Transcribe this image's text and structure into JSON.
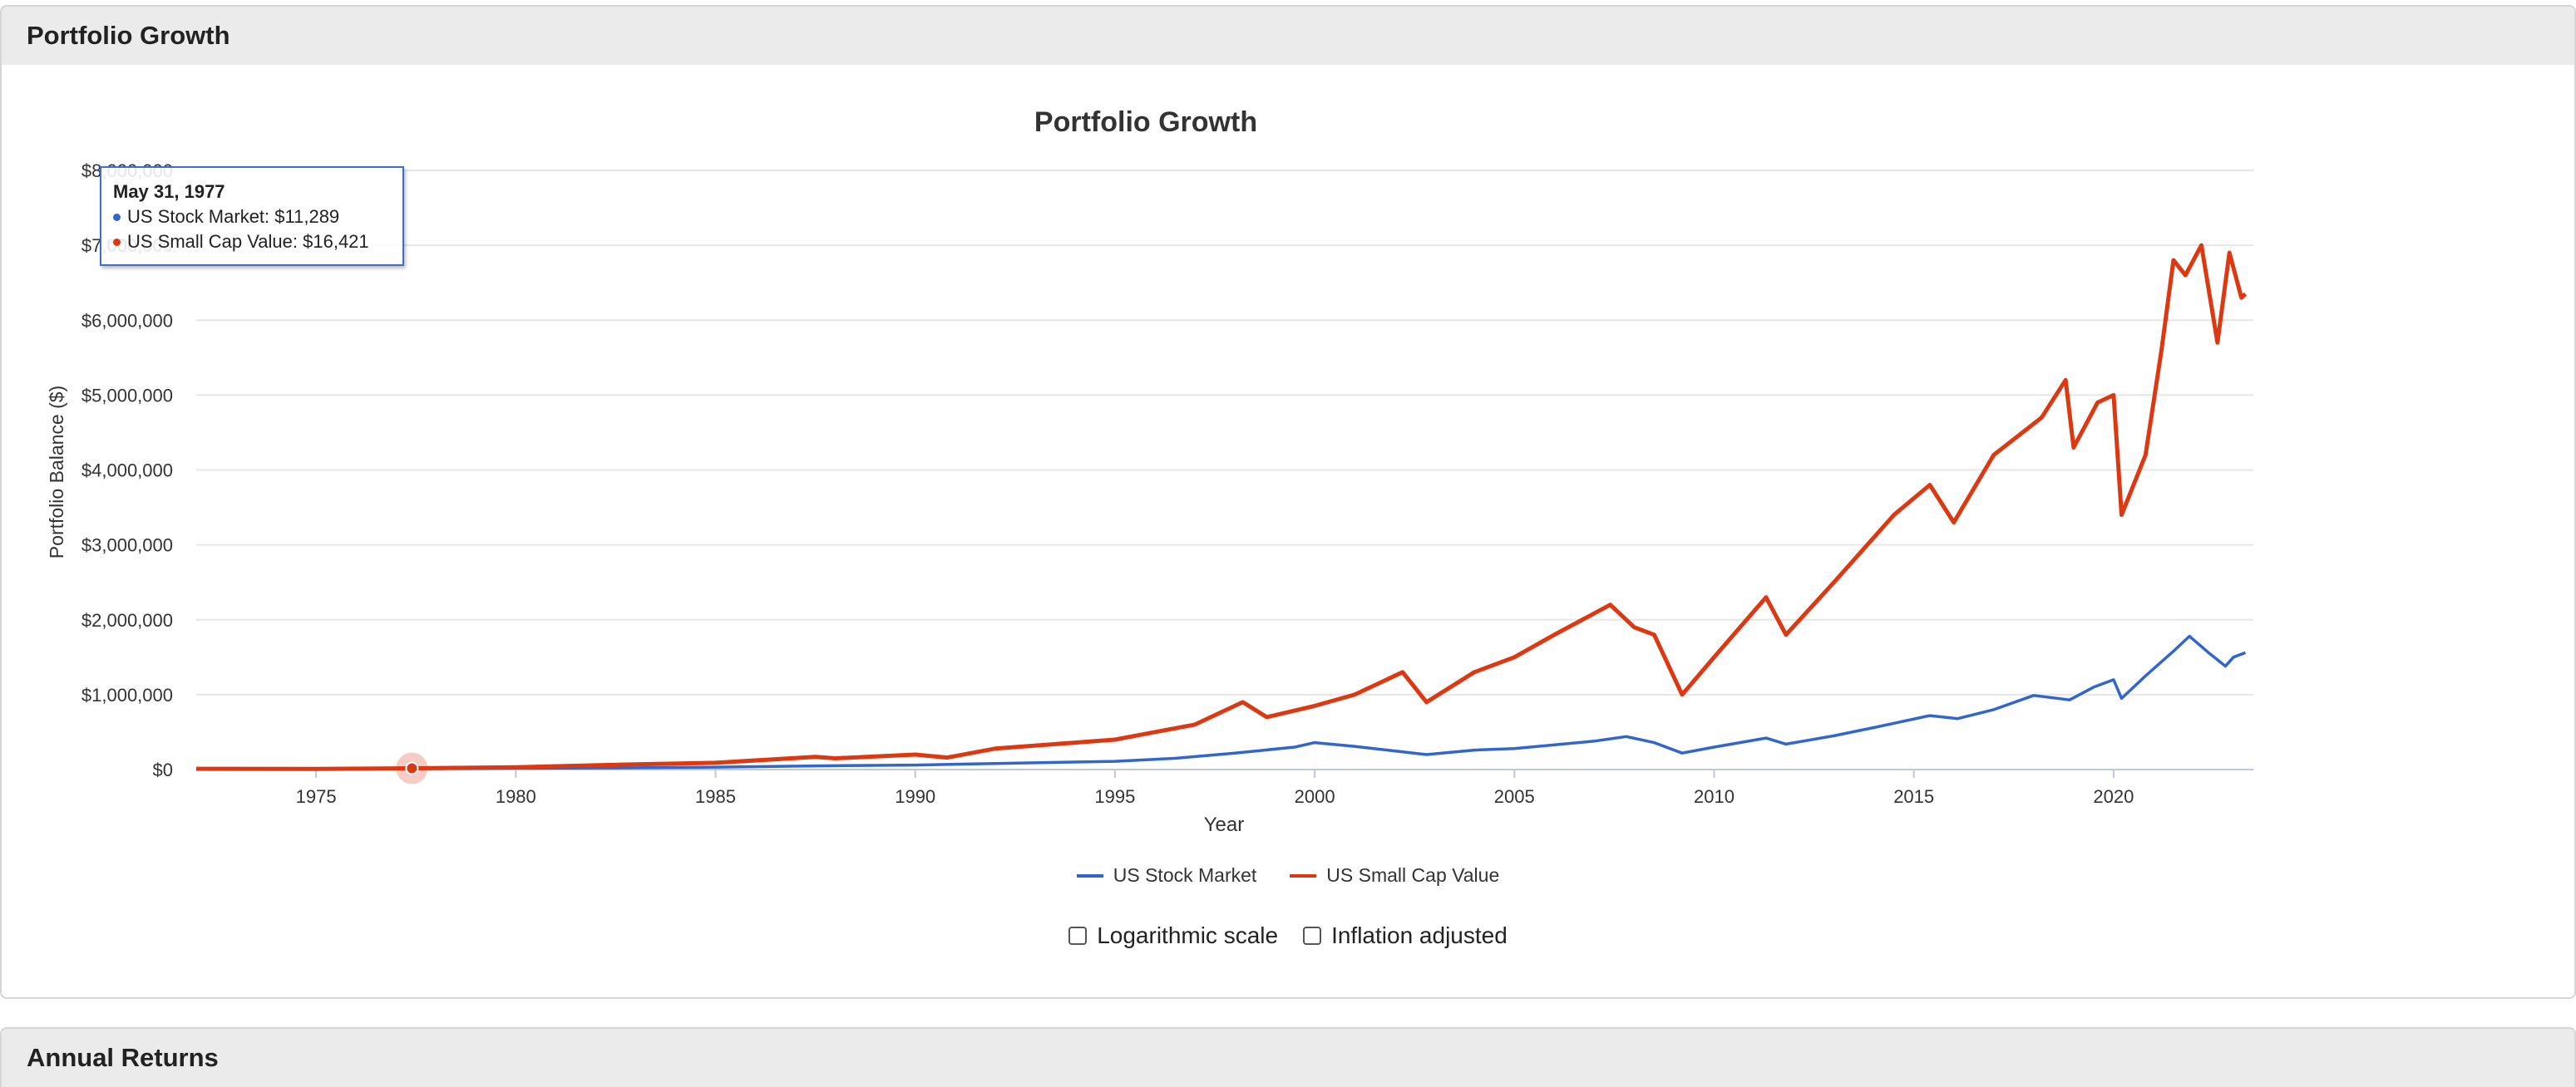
{
  "panels": {
    "top_title": "Portfolio Growth",
    "bottom_title": "Annual Returns"
  },
  "colors": {
    "us_stock_market": "#3366cc",
    "us_small_cap_value": "#dc3912"
  },
  "chart_data": {
    "type": "line",
    "title": "Portfolio Growth",
    "xlabel": "Year",
    "ylabel": "Portfolio Balance ($)",
    "xlim": [
      1972.0,
      2023.5
    ],
    "ylim": [
      0,
      8000000
    ],
    "x_ticks": [
      "1975",
      "1980",
      "1985",
      "1990",
      "1995",
      "2000",
      "2005",
      "2010",
      "2015",
      "2020"
    ],
    "y_ticks": [
      "$0",
      "$1,000,000",
      "$2,000,000",
      "$3,000,000",
      "$4,000,000",
      "$5,000,000",
      "$6,000,000",
      "$7,000,000",
      "$8,000,000"
    ],
    "grid": true,
    "legend_position": "bottom",
    "series": [
      {
        "name": "US Stock Market",
        "color": "#3366cc",
        "points": [
          [
            1972.0,
            10000
          ],
          [
            1974.8,
            7000
          ],
          [
            1977.4,
            11289
          ],
          [
            1980,
            18000
          ],
          [
            1982.6,
            22000
          ],
          [
            1985,
            32000
          ],
          [
            1987.7,
            50000
          ],
          [
            1990,
            60000
          ],
          [
            1992,
            80000
          ],
          [
            1995,
            110000
          ],
          [
            1996.5,
            150000
          ],
          [
            1998,
            220000
          ],
          [
            1999.5,
            300000
          ],
          [
            2000.0,
            360000
          ],
          [
            2001,
            310000
          ],
          [
            2002.8,
            200000
          ],
          [
            2004,
            260000
          ],
          [
            2005,
            280000
          ],
          [
            2007.0,
            380000
          ],
          [
            2007.8,
            440000
          ],
          [
            2008.5,
            360000
          ],
          [
            2009.2,
            220000
          ],
          [
            2010,
            300000
          ],
          [
            2011.3,
            420000
          ],
          [
            2011.8,
            340000
          ],
          [
            2013,
            450000
          ],
          [
            2014,
            560000
          ],
          [
            2015.4,
            720000
          ],
          [
            2016.1,
            680000
          ],
          [
            2017,
            800000
          ],
          [
            2018.0,
            990000
          ],
          [
            2018.9,
            930000
          ],
          [
            2019.5,
            1100000
          ],
          [
            2020.0,
            1200000
          ],
          [
            2020.2,
            950000
          ],
          [
            2020.8,
            1250000
          ],
          [
            2021.5,
            1580000
          ],
          [
            2021.9,
            1780000
          ],
          [
            2022.4,
            1550000
          ],
          [
            2022.8,
            1380000
          ],
          [
            2023.0,
            1500000
          ],
          [
            2023.3,
            1560000
          ]
        ]
      },
      {
        "name": "US Small Cap Value",
        "color": "#dc3912",
        "points": [
          [
            1972.0,
            10000
          ],
          [
            1974.8,
            8000
          ],
          [
            1977.4,
            16421
          ],
          [
            1980,
            30000
          ],
          [
            1983,
            70000
          ],
          [
            1985,
            90000
          ],
          [
            1987.5,
            170000
          ],
          [
            1988,
            150000
          ],
          [
            1990,
            200000
          ],
          [
            1990.8,
            160000
          ],
          [
            1992,
            280000
          ],
          [
            1994,
            360000
          ],
          [
            1995,
            400000
          ],
          [
            1997,
            600000
          ],
          [
            1998.2,
            900000
          ],
          [
            1998.8,
            700000
          ],
          [
            2000,
            850000
          ],
          [
            2001,
            1000000
          ],
          [
            2002.2,
            1300000
          ],
          [
            2002.8,
            900000
          ],
          [
            2004,
            1300000
          ],
          [
            2005,
            1500000
          ],
          [
            2006,
            1800000
          ],
          [
            2007.4,
            2200000
          ],
          [
            2008,
            1900000
          ],
          [
            2008.5,
            1800000
          ],
          [
            2009.2,
            1000000
          ],
          [
            2010,
            1500000
          ],
          [
            2011.3,
            2300000
          ],
          [
            2011.8,
            1800000
          ],
          [
            2013,
            2500000
          ],
          [
            2014.5,
            3400000
          ],
          [
            2015.4,
            3800000
          ],
          [
            2016.0,
            3300000
          ],
          [
            2017,
            4200000
          ],
          [
            2018.2,
            4700000
          ],
          [
            2018.8,
            5200000
          ],
          [
            2019.0,
            4300000
          ],
          [
            2019.6,
            4900000
          ],
          [
            2020.0,
            5000000
          ],
          [
            2020.2,
            3400000
          ],
          [
            2020.8,
            4200000
          ],
          [
            2021.2,
            5600000
          ],
          [
            2021.5,
            6800000
          ],
          [
            2021.8,
            6600000
          ],
          [
            2022.2,
            7000000
          ],
          [
            2022.6,
            5700000
          ],
          [
            2022.9,
            6900000
          ],
          [
            2023.2,
            6300000
          ],
          [
            2023.3,
            6350000
          ]
        ]
      }
    ],
    "tooltip": {
      "date": "May 31, 1977",
      "lines": [
        {
          "series": "US Stock Market",
          "text": "US Stock Market: $11,289"
        },
        {
          "series": "US Small Cap Value",
          "text": "US Small Cap Value: $16,421"
        }
      ],
      "highlight_x": 1977.4,
      "highlight_y": 16421
    }
  },
  "legend": {
    "items": [
      "US Stock Market",
      "US Small Cap Value"
    ]
  },
  "controls": {
    "log_scale_label": "Logarithmic scale",
    "inflation_label": "Inflation adjusted"
  }
}
